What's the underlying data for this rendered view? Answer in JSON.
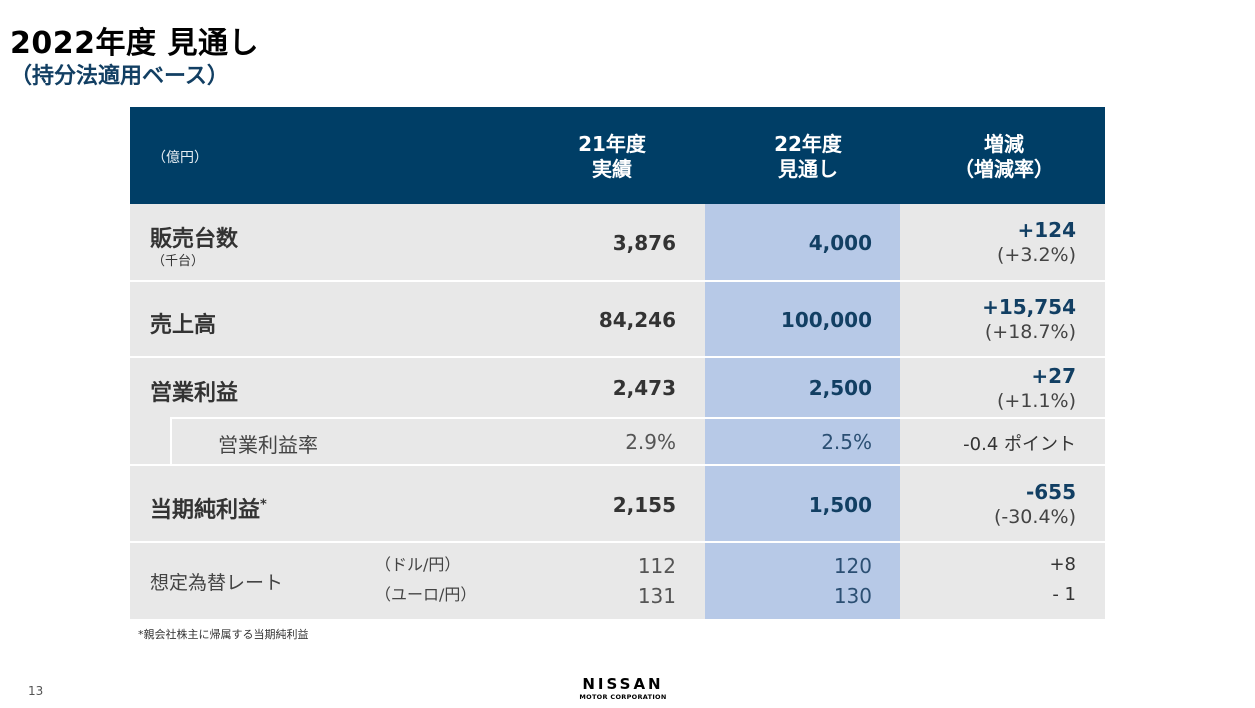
{
  "title": "2022年度 見通し",
  "subtitle": "（持分法適用ベース）",
  "table": {
    "unit": "（億円）",
    "col_prev": [
      "21年度",
      "実績"
    ],
    "col_fcst": [
      "22年度",
      "見通し"
    ],
    "col_change": [
      "増減",
      "（増減率）"
    ],
    "rows": {
      "sales_units": {
        "label": "販売台数",
        "sublabel": "（千台）",
        "prev": "3,876",
        "fcst": "4,000",
        "change": "+124",
        "change_rate": "(+3.2%)"
      },
      "revenue": {
        "label": "売上高",
        "prev": "84,246",
        "fcst": "100,000",
        "change": "+15,754",
        "change_rate": "(+18.7%)"
      },
      "op_profit": {
        "label": "営業利益",
        "prev": "2,473",
        "fcst": "2,500",
        "change": "+27",
        "change_rate": "(+1.1%)"
      },
      "op_margin": {
        "label": "営業利益率",
        "prev": "2.9%",
        "fcst": "2.5%",
        "change": "-0.4 ポイント"
      },
      "net_income": {
        "label": "当期純利益",
        "mark": "*",
        "prev": "2,155",
        "fcst": "1,500",
        "change": "-655",
        "change_rate": "(-30.4%)"
      },
      "fx": {
        "label": "想定為替レート",
        "usd": {
          "label": "（ドル/円）",
          "prev": "112",
          "fcst": "120",
          "change": "+8"
        },
        "eur": {
          "label": "（ユーロ/円）",
          "prev": "131",
          "fcst": "130",
          "change": "- 1"
        }
      }
    }
  },
  "footnote": "*親会社株主に帰属する当期純利益",
  "page_number": "13",
  "logo": {
    "name": "NISSAN",
    "sub": "MOTOR CORPORATION"
  }
}
